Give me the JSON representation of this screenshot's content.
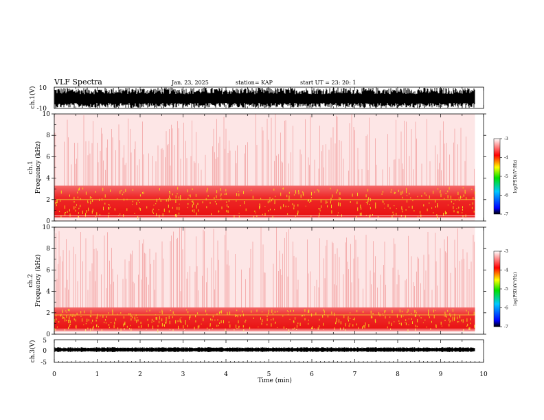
{
  "header": {
    "title": "VLF Spectra",
    "date": "Jan. 23, 2025",
    "station": "station= KAP",
    "start": "start  UT  =   23: 20: 1"
  },
  "chart_data": [
    {
      "type": "line",
      "panel": "ch1-waveform",
      "ylabel": "ch.1(V)",
      "ylim": [
        -10,
        10
      ],
      "yticks": [
        "10",
        "-10"
      ],
      "xlim": [
        0,
        10
      ],
      "color": "#000000"
    },
    {
      "type": "heatmap",
      "panel": "ch1-spectrogram",
      "ylabel": "ch.1\nFrequency (kHz)",
      "ylim": [
        0,
        10
      ],
      "yticks": [
        "0",
        "2",
        "4",
        "6",
        "8",
        "10"
      ],
      "xlim": [
        0,
        9.8
      ],
      "colorbar": {
        "ticks": [
          "-3",
          "-4",
          "-5",
          "-6",
          "-7"
        ],
        "label": "log(PSD)(V²/Hz)",
        "range": [
          -7,
          -3
        ]
      },
      "intense_band_khz": [
        0.3,
        3.3
      ],
      "yellow_line_khz": 2.0
    },
    {
      "type": "heatmap",
      "panel": "ch2-spectrogram",
      "ylabel": "ch.2\nFrequency (kHz)",
      "ylim": [
        0,
        10
      ],
      "yticks": [
        "0",
        "2",
        "4",
        "6",
        "8",
        "10"
      ],
      "xlim": [
        0,
        9.8
      ],
      "colorbar": {
        "ticks": [
          "-3",
          "-4",
          "-5",
          "-6",
          "-7"
        ],
        "label": "log(PSD)(V²/Hz)",
        "range": [
          -7,
          -3
        ]
      },
      "intense_band_khz": [
        0.3,
        2.5
      ],
      "yellow_line_khz": 1.8
    },
    {
      "type": "line",
      "panel": "ch3-waveform",
      "ylabel": "ch.3(V)",
      "ylim": [
        -5,
        5
      ],
      "yticks": [
        "5",
        "0",
        "-5"
      ],
      "xlim": [
        0,
        10
      ],
      "color": "#000000"
    }
  ],
  "xaxis": {
    "label": "Time (min)",
    "ticks": [
      "0",
      "1",
      "2",
      "3",
      "4",
      "5",
      "6",
      "7",
      "8",
      "9",
      "10"
    ]
  }
}
